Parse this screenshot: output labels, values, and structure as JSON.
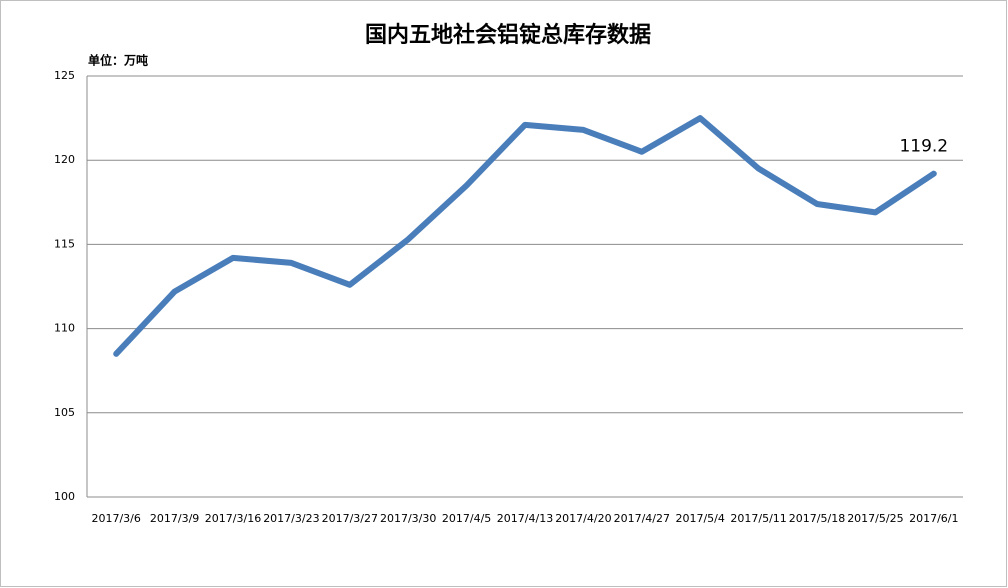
{
  "chart_data": {
    "type": "line",
    "title": "国内五地社会铝锭总库存数据",
    "unit_label": "单位：万吨",
    "categories": [
      "2017/3/6",
      "2017/3/9",
      "2017/3/16",
      "2017/3/23",
      "2017/3/27",
      "2017/3/30",
      "2017/4/5",
      "2017/4/13",
      "2017/4/20",
      "2017/4/27",
      "2017/5/4",
      "2017/5/11",
      "2017/5/18",
      "2017/5/25",
      "2017/6/1"
    ],
    "series": [
      {
        "color": "#4a7ebb",
        "values": [
          108.5,
          112.2,
          114.2,
          113.9,
          112.6,
          115.3,
          118.5,
          122.1,
          121.8,
          120.5,
          122.5,
          119.5,
          117.4,
          116.9,
          119.2
        ]
      }
    ],
    "ylim": [
      100,
      125
    ],
    "yticks": [
      100,
      105,
      110,
      115,
      120,
      125
    ],
    "grid": true
  }
}
